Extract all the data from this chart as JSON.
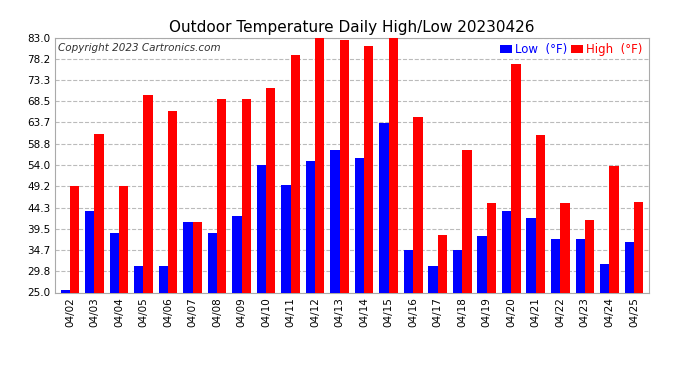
{
  "title": "Outdoor Temperature Daily High/Low 20230426",
  "copyright": "Copyright 2023 Cartronics.com",
  "legend_low_label": "Low  (°F)",
  "legend_high_label": "High  (°F)",
  "legend_low_color": "#0000ff",
  "legend_high_color": "#ff0000",
  "ylim": [
    25.0,
    83.0
  ],
  "yticks": [
    25.0,
    29.8,
    34.7,
    39.5,
    44.3,
    49.2,
    54.0,
    58.8,
    63.7,
    68.5,
    73.3,
    78.2,
    83.0
  ],
  "background_color": "#ffffff",
  "plot_bg_color": "#ffffff",
  "grid_color": "#bbbbbb",
  "dates": [
    "04/02",
    "04/03",
    "04/04",
    "04/05",
    "04/06",
    "04/07",
    "04/08",
    "04/09",
    "04/10",
    "04/11",
    "04/12",
    "04/13",
    "04/14",
    "04/15",
    "04/16",
    "04/17",
    "04/18",
    "04/19",
    "04/20",
    "04/21",
    "04/22",
    "04/23",
    "04/24",
    "04/25"
  ],
  "highs": [
    49.2,
    61.0,
    49.2,
    70.0,
    66.2,
    41.0,
    69.1,
    69.1,
    71.5,
    79.0,
    83.0,
    82.5,
    81.0,
    83.0,
    65.0,
    38.0,
    57.5,
    45.3,
    77.0,
    60.8,
    45.3,
    41.5,
    53.8,
    45.5
  ],
  "lows": [
    25.5,
    43.5,
    38.5,
    31.0,
    31.0,
    41.0,
    38.5,
    42.5,
    54.0,
    49.5,
    55.0,
    57.5,
    55.5,
    63.5,
    34.7,
    31.0,
    34.7,
    37.8,
    43.5,
    42.0,
    37.2,
    37.2,
    31.5,
    36.5
  ],
  "bar_width": 0.38,
  "title_fontsize": 11,
  "tick_fontsize": 7.5,
  "legend_fontsize": 8.5,
  "copyright_fontsize": 7.5,
  "high_color": "#ff0000",
  "low_color": "#0000ff"
}
